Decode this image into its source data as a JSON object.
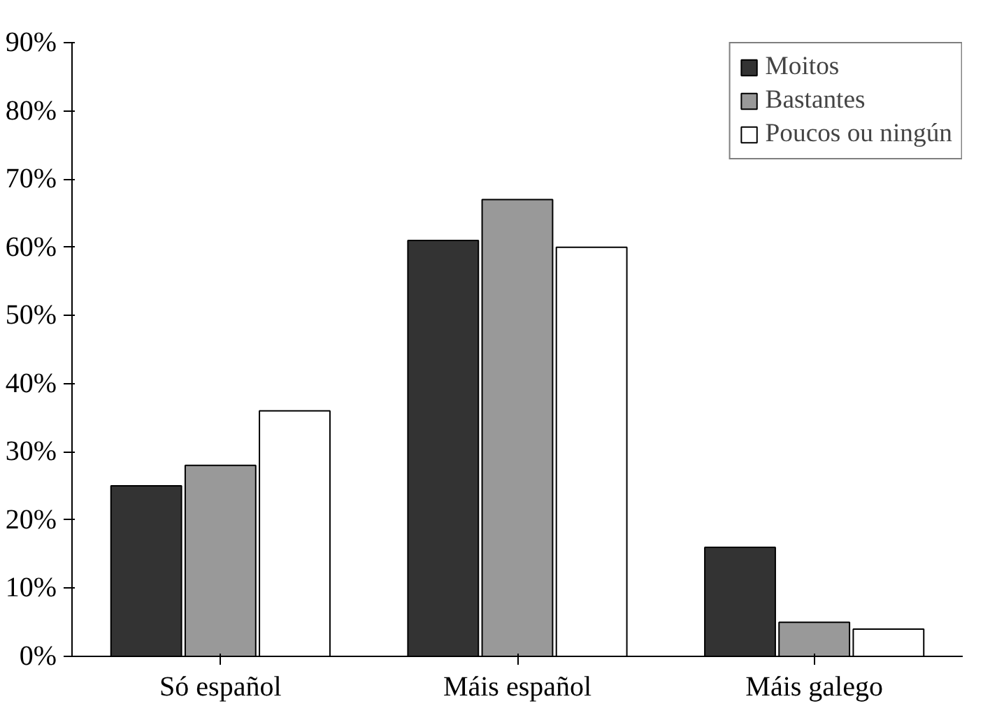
{
  "chart_data": {
    "type": "bar",
    "categories": [
      "Só español",
      "Máis español",
      "Máis galego"
    ],
    "series": [
      {
        "name": "Moitos",
        "color": "#333333",
        "values": [
          25,
          61,
          16
        ]
      },
      {
        "name": "Bastantes",
        "color": "#999999",
        "values": [
          28,
          67,
          5
        ]
      },
      {
        "name": "Poucos ou ningún",
        "color": "#ffffff",
        "values": [
          36,
          60,
          4
        ]
      }
    ],
    "ylim": [
      0,
      90
    ],
    "yticks": [
      {
        "value": 0,
        "label": "0%"
      },
      {
        "value": 10,
        "label": "10%"
      },
      {
        "value": 20,
        "label": "20%"
      },
      {
        "value": 30,
        "label": "30%"
      },
      {
        "value": 40,
        "label": "40%"
      },
      {
        "value": 50,
        "label": "50%"
      },
      {
        "value": 60,
        "label": "60%"
      },
      {
        "value": 70,
        "label": "70%"
      },
      {
        "value": 80,
        "label": "80%"
      },
      {
        "value": 90,
        "label": "90%"
      }
    ],
    "grid": false,
    "legend": "top right"
  }
}
